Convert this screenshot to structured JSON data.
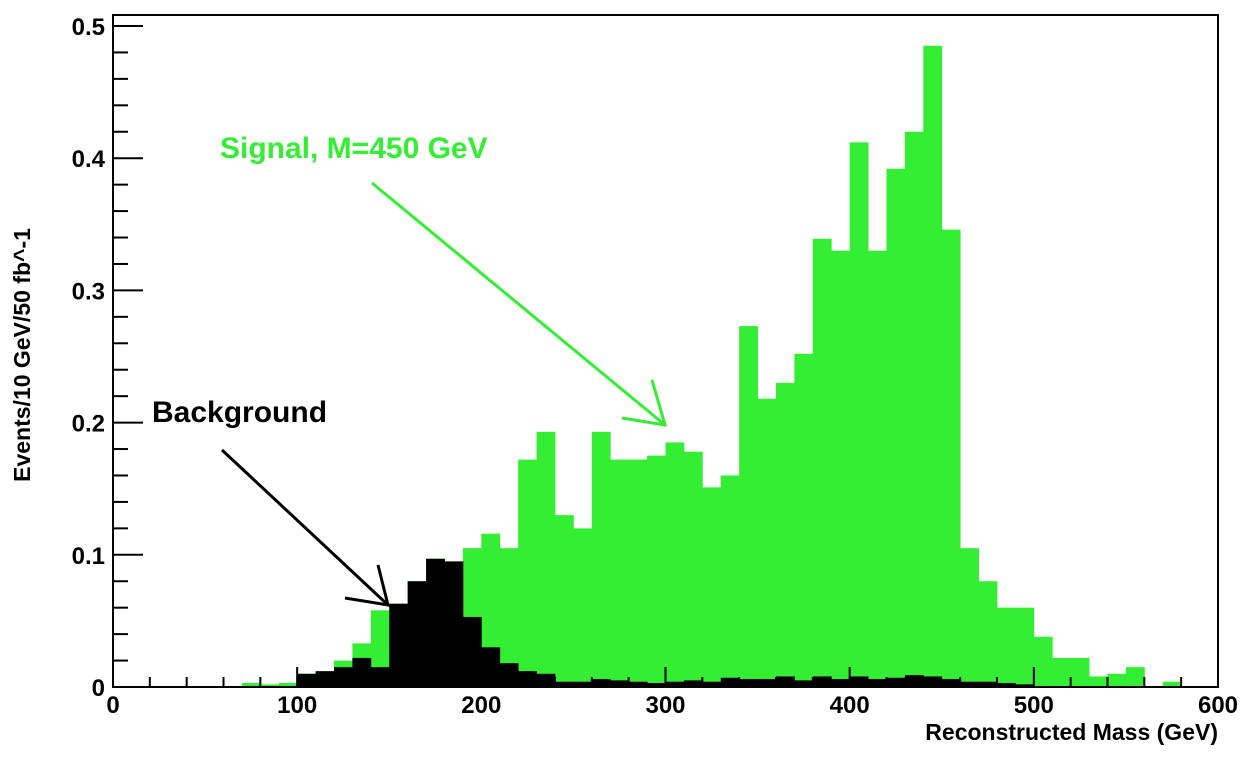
{
  "chart_data": {
    "type": "histogram",
    "x_label": "Reconstructed Mass (GeV)",
    "y_label": "Events/10 GeV/50 fb^-1",
    "bins": [
      0,
      10,
      20,
      30,
      40,
      50,
      60,
      70,
      80,
      90,
      100,
      110,
      120,
      130,
      140,
      150,
      160,
      170,
      180,
      190,
      200,
      210,
      220,
      230,
      240,
      250,
      260,
      270,
      280,
      290,
      300,
      310,
      320,
      330,
      340,
      350,
      360,
      370,
      380,
      390,
      400,
      410,
      420,
      430,
      440,
      450,
      460,
      470,
      480,
      490,
      500,
      510,
      520,
      530,
      540,
      550,
      560,
      570,
      580,
      590,
      600
    ],
    "series": [
      {
        "name": "Signal, M=450 GeV",
        "color": "#33ee33",
        "values": [
          0,
          0,
          0,
          0,
          0,
          0,
          0,
          0.003,
          0.002,
          0.003,
          0.01,
          0.01,
          0.02,
          0.033,
          0.058,
          0.063,
          0.08,
          0.097,
          0.095,
          0.105,
          0.116,
          0.105,
          0.172,
          0.193,
          0.13,
          0.12,
          0.193,
          0.172,
          0.172,
          0.175,
          0.185,
          0.178,
          0.151,
          0.16,
          0.273,
          0.218,
          0.23,
          0.252,
          0.339,
          0.33,
          0.412,
          0.33,
          0.392,
          0.42,
          0.485,
          0.346,
          0.105,
          0.08,
          0.06,
          0.06,
          0.038,
          0.022,
          0.022,
          0.008,
          0.01,
          0.015,
          0,
          0.004,
          0,
          0
        ]
      },
      {
        "name": "Background",
        "color": "#000000",
        "values": [
          0,
          0,
          0,
          0,
          0,
          0,
          0,
          0,
          0,
          0,
          0.01,
          0.012,
          0.015,
          0.022,
          0.015,
          0.063,
          0.08,
          0.097,
          0.095,
          0.053,
          0.03,
          0.018,
          0.012,
          0.01,
          0.004,
          0.004,
          0.006,
          0.005,
          0.004,
          0.003,
          0.004,
          0.005,
          0.004,
          0.007,
          0.006,
          0.006,
          0.008,
          0.005,
          0.008,
          0.006,
          0.008,
          0.006,
          0.007,
          0.009,
          0.008,
          0.006,
          0.004,
          0.004,
          0.003,
          0.002,
          0,
          0,
          0,
          0,
          0,
          0,
          0,
          0,
          0,
          0
        ]
      }
    ],
    "xlim": [
      0,
      600
    ],
    "xticks": [
      0,
      100,
      200,
      300,
      400,
      500,
      600
    ],
    "ylim": [
      0,
      0.5
    ],
    "yticks": [
      0,
      0.1,
      0.2,
      0.3,
      0.4,
      0.5
    ]
  }
}
